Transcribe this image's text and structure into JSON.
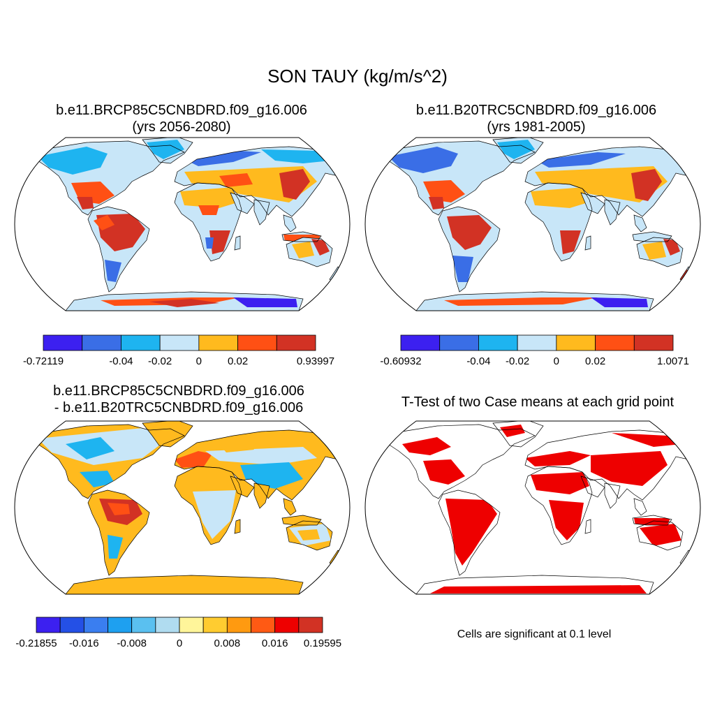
{
  "figure": {
    "title": "SON TAUY (kg/m/s^2)",
    "colors": {
      "land_cool": "#c8e6f8",
      "land_warm": "#ffba1e",
      "strong_warm": "#ff5014",
      "strongest_warm": "#d23224",
      "cool": "#1eb4f0",
      "strong_cool": "#3a6ee6",
      "strongest_cool": "#3c20f0",
      "significant": "#ee0000",
      "coast": "#000000"
    }
  },
  "panels": [
    {
      "id": "case1",
      "title_line1": "b.e11.BRCP85C5CNBDRD.f09_g16.006",
      "title_line2": "(yrs 2056-2080)",
      "colorbar": {
        "colors": [
          "#3c20f0",
          "#3a6ee6",
          "#1eb4f0",
          "#c8e6f8",
          "#ffba1e",
          "#ff5014",
          "#d23224"
        ],
        "labels": [
          "-0.72119",
          "-0.04",
          "-0.02",
          "0",
          "0.02",
          "0.93997"
        ],
        "label_boundaries": [
          0,
          2,
          3,
          4,
          5,
          7
        ]
      }
    },
    {
      "id": "case2",
      "title_line1": "b.e11.B20TRC5CNBDRD.f09_g16.006",
      "title_line2": "(yrs 1981-2005)",
      "colorbar": {
        "colors": [
          "#3c20f0",
          "#3a6ee6",
          "#1eb4f0",
          "#c8e6f8",
          "#ffba1e",
          "#ff5014",
          "#d23224"
        ],
        "labels": [
          "-0.60932",
          "-0.04",
          "-0.02",
          "0",
          "0.02",
          "1.0071"
        ],
        "label_boundaries": [
          0,
          2,
          3,
          4,
          5,
          7
        ]
      }
    },
    {
      "id": "diff",
      "title_line1": "b.e11.BRCP85C5CNBDRD.f09_g16.006",
      "title_line2": "- b.e11.B20TRC5CNBDRD.f09_g16.006",
      "colorbar": {
        "colors": [
          "#3c20f0",
          "#2450e6",
          "#3a7ef0",
          "#1ea0f0",
          "#5ac0f0",
          "#b0dcf0",
          "#fff59a",
          "#ffcc30",
          "#ff9a10",
          "#ff5a14",
          "#ee0000",
          "#d23224"
        ],
        "labels": [
          "-0.21855",
          "-0.016",
          "-0.008",
          "0",
          "0.008",
          "0.016",
          "0.19595"
        ],
        "label_boundaries": [
          0,
          2,
          4,
          6,
          8,
          10,
          12
        ]
      }
    },
    {
      "id": "ttest",
      "title_line1": "T-Test of two Case means at each grid point",
      "note": "Cells are significant at 0.1 level"
    }
  ]
}
